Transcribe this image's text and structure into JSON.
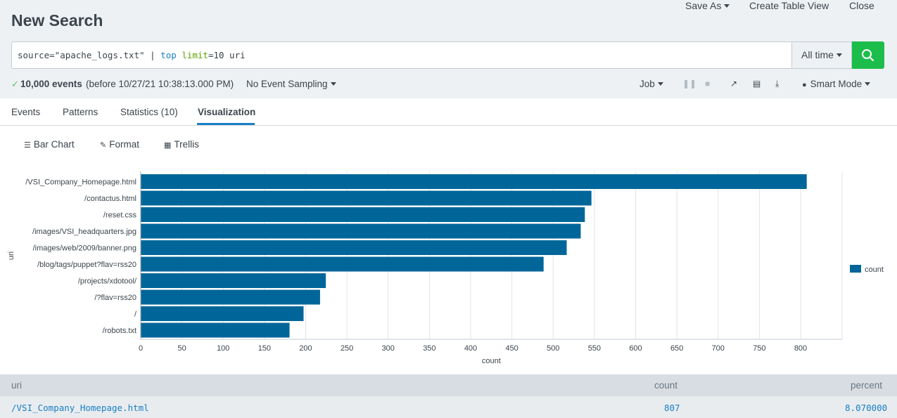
{
  "header": {
    "title": "New Search",
    "save_as": "Save As",
    "create_table_view": "Create Table View",
    "close": "Close"
  },
  "search": {
    "query_prefix": "source=\"apache_logs.txt\" | ",
    "query_cmd": "top",
    "query_space": " ",
    "query_arg": "limit",
    "query_rest": "=10 uri",
    "time_range": "All time",
    "search_icon": "magnifier-icon"
  },
  "status": {
    "events": "10,000 events",
    "events_time": "(before 10/27/21 10:38:13.000 PM)",
    "sampling": "No Event Sampling",
    "job": "Job",
    "mode": "Smart Mode"
  },
  "tabs": [
    {
      "label": "Events"
    },
    {
      "label": "Patterns"
    },
    {
      "label": "Statistics (10)"
    },
    {
      "label": "Visualization"
    }
  ],
  "viz_toolbar": {
    "bar_chart": "Bar Chart",
    "format": "Format",
    "trellis": "Trellis"
  },
  "chart_data": {
    "type": "bar",
    "orientation": "horizontal",
    "categories": [
      "/VSI_Company_Homepage.html",
      "/contactus.html",
      "/reset.css",
      "/images/VSI_headquarters.jpg",
      "/images/web/2009/banner.png",
      "/blog/tags/puppet?flav=rss20",
      "/projects/xdotool/",
      "/?flav=rss20",
      "/",
      "/robots.txt"
    ],
    "series": [
      {
        "name": "count",
        "values": [
          807,
          546,
          538,
          533,
          516,
          488,
          224,
          217,
          197,
          180
        ],
        "color": "#006699"
      }
    ],
    "xlabel": "count",
    "ylabel": "uri",
    "xlim": [
      0,
      800
    ],
    "xticks": [
      0,
      50,
      100,
      150,
      200,
      250,
      300,
      350,
      400,
      450,
      500,
      550,
      600,
      650,
      700,
      750,
      800
    ],
    "grid": true,
    "legend": "right"
  },
  "table": {
    "columns": [
      "uri",
      "count",
      "percent"
    ],
    "rows": [
      {
        "uri": "/VSI_Company_Homepage.html",
        "count": "807",
        "percent": "8.070000"
      }
    ]
  }
}
